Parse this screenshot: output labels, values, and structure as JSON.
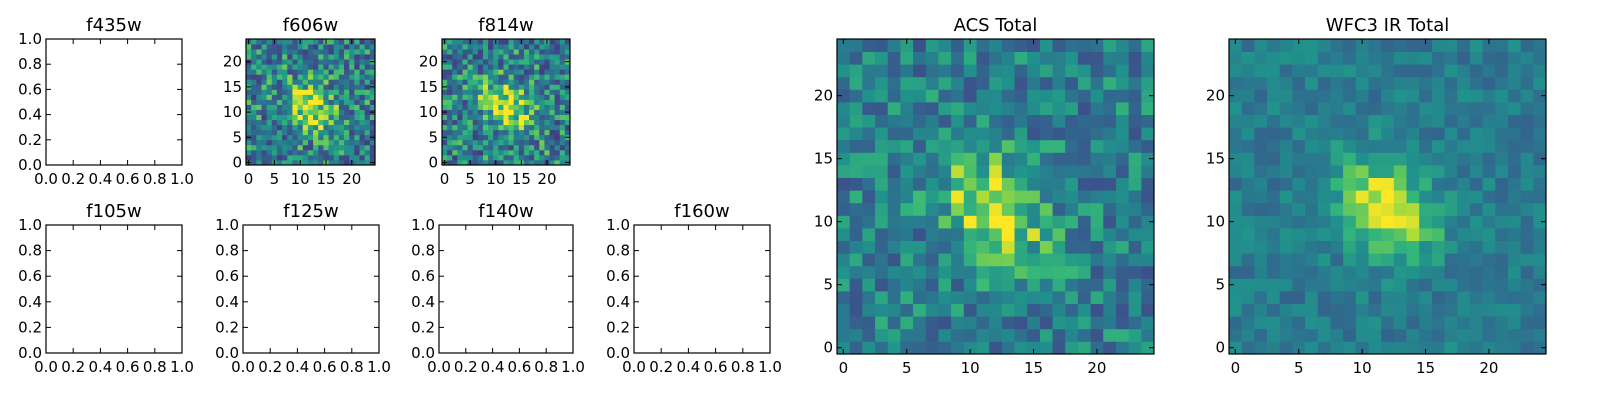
{
  "chart_data": [
    {
      "type": "line",
      "title": "f435w",
      "empty": true,
      "xlim": [
        0,
        1
      ],
      "ylim": [
        0,
        1
      ],
      "xticks": [
        "0.0",
        "0.2",
        "0.4",
        "0.6",
        "0.8",
        "1.0"
      ],
      "yticks": [
        "0.0",
        "0.2",
        "0.4",
        "0.6",
        "0.8",
        "1.0"
      ]
    },
    {
      "type": "heatmap",
      "title": "f606w",
      "grid": [
        25,
        25
      ],
      "xlim": [
        -0.5,
        24.5
      ],
      "ylim": [
        -0.5,
        24.5
      ],
      "xticks": [
        "0",
        "5",
        "10",
        "15",
        "20"
      ],
      "yticks": [
        "0",
        "5",
        "10",
        "15",
        "20"
      ],
      "colormap": "viridis",
      "source_peak": [
        12,
        11
      ],
      "source_sigma": 3.0,
      "noise": 0.55,
      "seed": 606
    },
    {
      "type": "heatmap",
      "title": "f814w",
      "grid": [
        25,
        25
      ],
      "xlim": [
        -0.5,
        24.5
      ],
      "ylim": [
        -0.5,
        24.5
      ],
      "xticks": [
        "0",
        "5",
        "10",
        "15",
        "20"
      ],
      "yticks": [
        "0",
        "5",
        "10",
        "15",
        "20"
      ],
      "colormap": "viridis",
      "source_peak": [
        12,
        11
      ],
      "source_sigma": 3.0,
      "noise": 0.55,
      "seed": 814
    },
    {
      "type": "line",
      "title": "f105w",
      "empty": true,
      "xlim": [
        0,
        1
      ],
      "ylim": [
        0,
        1
      ],
      "xticks": [
        "0.0",
        "0.2",
        "0.4",
        "0.6",
        "0.8",
        "1.0"
      ],
      "yticks": [
        "0.0",
        "0.2",
        "0.4",
        "0.6",
        "0.8",
        "1.0"
      ]
    },
    {
      "type": "line",
      "title": "f125w",
      "empty": true,
      "xlim": [
        0,
        1
      ],
      "ylim": [
        0,
        1
      ],
      "xticks": [
        "0.0",
        "0.2",
        "0.4",
        "0.6",
        "0.8",
        "1.0"
      ],
      "yticks": [
        "0.0",
        "0.2",
        "0.4",
        "0.6",
        "0.8",
        "1.0"
      ]
    },
    {
      "type": "line",
      "title": "f140w",
      "empty": true,
      "xlim": [
        0,
        1
      ],
      "ylim": [
        0,
        1
      ],
      "xticks": [
        "0.0",
        "0.2",
        "0.4",
        "0.6",
        "0.8",
        "1.0"
      ],
      "yticks": [
        "0.0",
        "0.2",
        "0.4",
        "0.6",
        "0.8",
        "1.0"
      ]
    },
    {
      "type": "line",
      "title": "f160w",
      "empty": true,
      "xlim": [
        0,
        1
      ],
      "ylim": [
        0,
        1
      ],
      "xticks": [
        "0.0",
        "0.2",
        "0.4",
        "0.6",
        "0.8",
        "1.0"
      ],
      "yticks": [
        "0.0",
        "0.2",
        "0.4",
        "0.6",
        "0.8",
        "1.0"
      ]
    },
    {
      "type": "heatmap",
      "title": "ACS Total",
      "grid": [
        25,
        25
      ],
      "xlim": [
        -0.5,
        24.5
      ],
      "ylim": [
        -0.5,
        24.5
      ],
      "xticks": [
        "0",
        "5",
        "10",
        "15",
        "20"
      ],
      "yticks": [
        "0",
        "5",
        "10",
        "15",
        "20"
      ],
      "colormap": "viridis",
      "source_peak": [
        12,
        11
      ],
      "source_sigma": 2.6,
      "noise": 0.38,
      "seed": 1234
    },
    {
      "type": "heatmap",
      "title": "WFC3 IR Total",
      "grid": [
        25,
        25
      ],
      "xlim": [
        -0.5,
        24.5
      ],
      "ylim": [
        -0.5,
        24.5
      ],
      "xticks": [
        "0",
        "5",
        "10",
        "15",
        "20"
      ],
      "yticks": [
        "0",
        "5",
        "10",
        "15",
        "20"
      ],
      "colormap": "viridis",
      "source_peak": [
        12,
        11
      ],
      "source_sigma": 2.4,
      "noise": 0.22,
      "seed": 4321
    }
  ]
}
